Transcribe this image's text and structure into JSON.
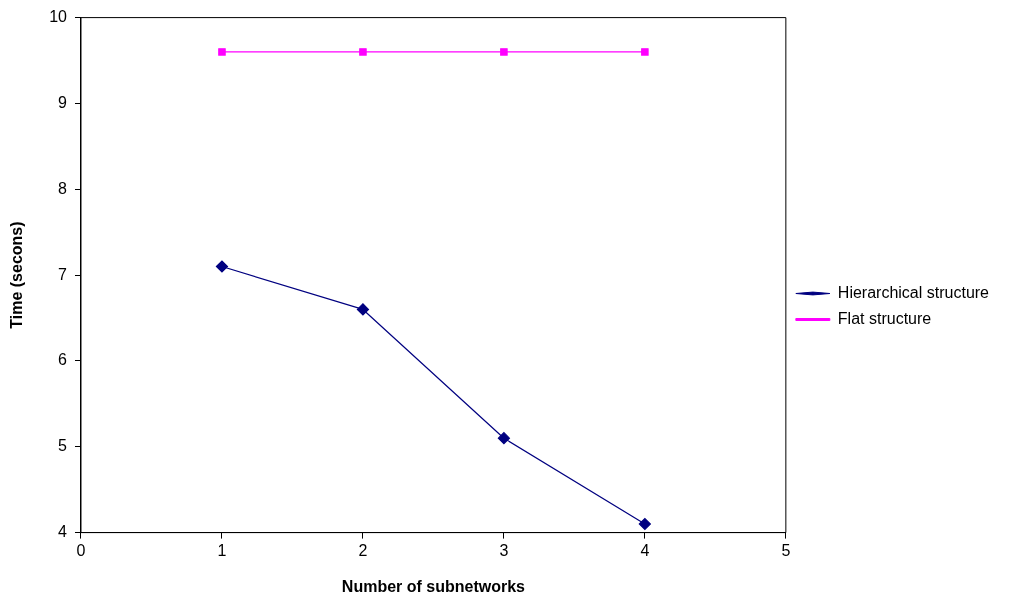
{
  "chart_data": {
    "type": "line",
    "xlabel": "Number of subnetworks",
    "ylabel": "Time (secons)",
    "x": [
      1,
      2,
      3,
      4
    ],
    "series": [
      {
        "name": "Hierarchical structure",
        "color": "#000080",
        "values": [
          7.1,
          6.6,
          5.1,
          4.1
        ],
        "marker": "diamond"
      },
      {
        "name": "Flat structure",
        "color": "#ff00ff",
        "values": [
          9.6,
          9.6,
          9.6,
          9.6
        ],
        "marker": "square"
      }
    ],
    "xlim": [
      0,
      5
    ],
    "xticks": [
      0,
      1,
      2,
      3,
      4,
      5
    ],
    "ylim": [
      4,
      10
    ],
    "yticks": [
      4,
      5,
      6,
      7,
      8,
      9,
      10
    ],
    "grid": false,
    "legend": "right",
    "line_style": "solid"
  }
}
